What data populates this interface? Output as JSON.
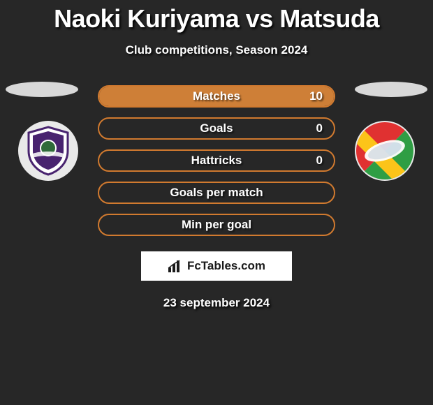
{
  "title": "Naoki Kuriyama vs Matsuda",
  "subtitle": "Club competitions, Season 2024",
  "date": "23 september 2024",
  "fctables_label": "FcTables.com",
  "colors": {
    "pill_border": "#d17a2f",
    "pill_fill": "#ce7f37",
    "background": "#272727",
    "ellipse": "#d8d8d8",
    "badge_bg": "#e9e9e9"
  },
  "stats": [
    {
      "label": "Matches",
      "value": "10",
      "fill_pct": 100,
      "show_value": true
    },
    {
      "label": "Goals",
      "value": "0",
      "fill_pct": 0,
      "show_value": true
    },
    {
      "label": "Hattricks",
      "value": "0",
      "fill_pct": 0,
      "show_value": true
    },
    {
      "label": "Goals per match",
      "value": "",
      "fill_pct": 0,
      "show_value": false
    },
    {
      "label": "Min per goal",
      "value": "",
      "fill_pct": 0,
      "show_value": false
    }
  ],
  "left_club": {
    "shield_primary": "#48236f",
    "shield_secondary": "#ffffff",
    "shield_accent": "#2f6b3a"
  },
  "right_club": {
    "c1": "#e03131",
    "c2": "#fcc419",
    "c3": "#2f9e44",
    "blue": "#0b4aa0"
  }
}
